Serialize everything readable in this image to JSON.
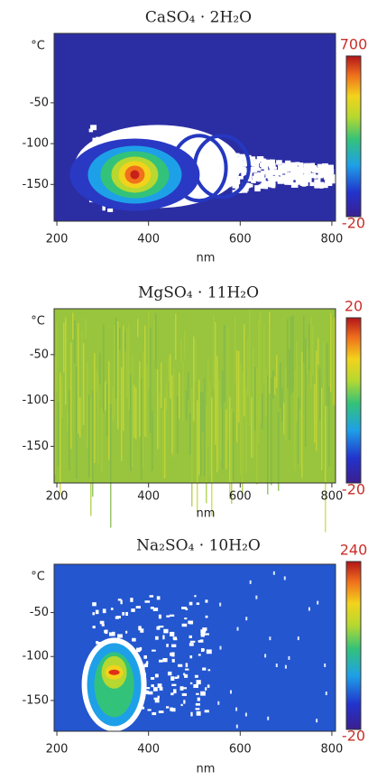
{
  "chart_data": [
    {
      "type": "heatmap",
      "title": "CaSO₄ · 2H₂O",
      "xlabel": "nm",
      "ylabel": "°C",
      "xlim": [
        194,
        808
      ],
      "xticks": [
        200,
        400,
        600,
        800
      ],
      "ylim": [
        -195,
        35
      ],
      "yticks": [
        -50,
        -100,
        -150
      ],
      "clim": [
        -20,
        700
      ],
      "colormap": "jet"
    },
    {
      "type": "heatmap",
      "title": "MgSO₄ · 11H₂O",
      "xlabel": "nm",
      "ylabel": "°C",
      "xlim": [
        194,
        808
      ],
      "xticks": [
        200,
        400,
        600,
        800
      ],
      "ylim": [
        -190,
        0
      ],
      "yticks": [
        -50,
        -100,
        -150
      ],
      "clim": [
        -20,
        20
      ],
      "colormap": "jet"
    },
    {
      "type": "heatmap",
      "title": "Na₂SO₄ · 10H₂O",
      "xlabel": "nm",
      "ylabel": "°C",
      "xlim": [
        194,
        808
      ],
      "xticks": [
        200,
        400,
        600,
        800
      ],
      "ylim": [
        -185,
        5
      ],
      "yticks": [
        -50,
        -100,
        -150
      ],
      "clim": [
        -20,
        240
      ],
      "colormap": "jet"
    }
  ]
}
